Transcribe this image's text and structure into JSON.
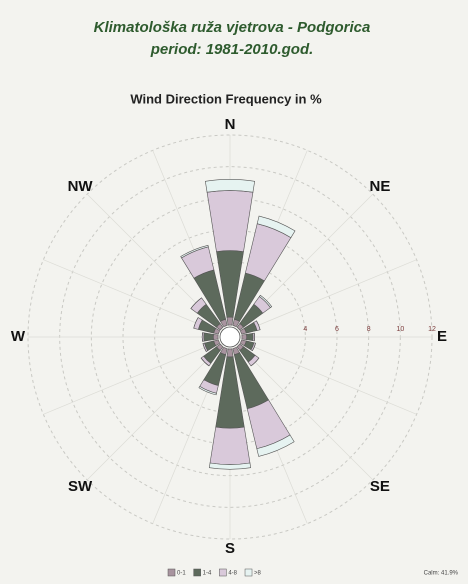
{
  "chart_data": {
    "type": "windrose",
    "title": "Klimatološka ruža vjetrova - Podgorica",
    "subtitle": "period: 1981-2010.god.",
    "chart_title": "Wind Direction Frequency in %",
    "categories": [
      "N",
      null,
      "NE",
      null,
      "E",
      null,
      "SE",
      null,
      "S",
      null,
      "SW",
      null,
      "W",
      null,
      "NW",
      null
    ],
    "series": [
      {
        "name": "0-1",
        "color": "#a8949f",
        "values": [
          0.5,
          0.4,
          0.3,
          0.3,
          0.3,
          0.3,
          0.3,
          0.4,
          0.5,
          0.4,
          0.3,
          0.3,
          0.3,
          0.3,
          0.3,
          0.4
        ]
      },
      {
        "name": "1-4",
        "color": "#5d6a5c",
        "values": [
          4.2,
          3.0,
          1.5,
          0.7,
          0.4,
          0.5,
          0.9,
          3.5,
          4.5,
          2.0,
          1.0,
          0.6,
          0.6,
          1.0,
          1.5,
          3.2
        ]
      },
      {
        "name": "4-8",
        "color": "#d9c9da",
        "values": [
          3.8,
          3.2,
          0.6,
          0.2,
          0.1,
          0.1,
          0.3,
          2.6,
          2.3,
          0.5,
          0.2,
          0.1,
          0.1,
          0.3,
          0.5,
          1.5
        ]
      },
      {
        "name": ">8",
        "color": "#e6f3f1",
        "values": [
          0.7,
          0.5,
          0.1,
          0,
          0,
          0,
          0,
          0.5,
          0.3,
          0.1,
          0,
          0,
          0,
          0,
          0,
          0.1
        ]
      }
    ],
    "rlim": [
      0,
      12
    ],
    "rticks": [
      4,
      6,
      8,
      10,
      12
    ],
    "grid": true,
    "calm": "Calm: 41.9%"
  }
}
